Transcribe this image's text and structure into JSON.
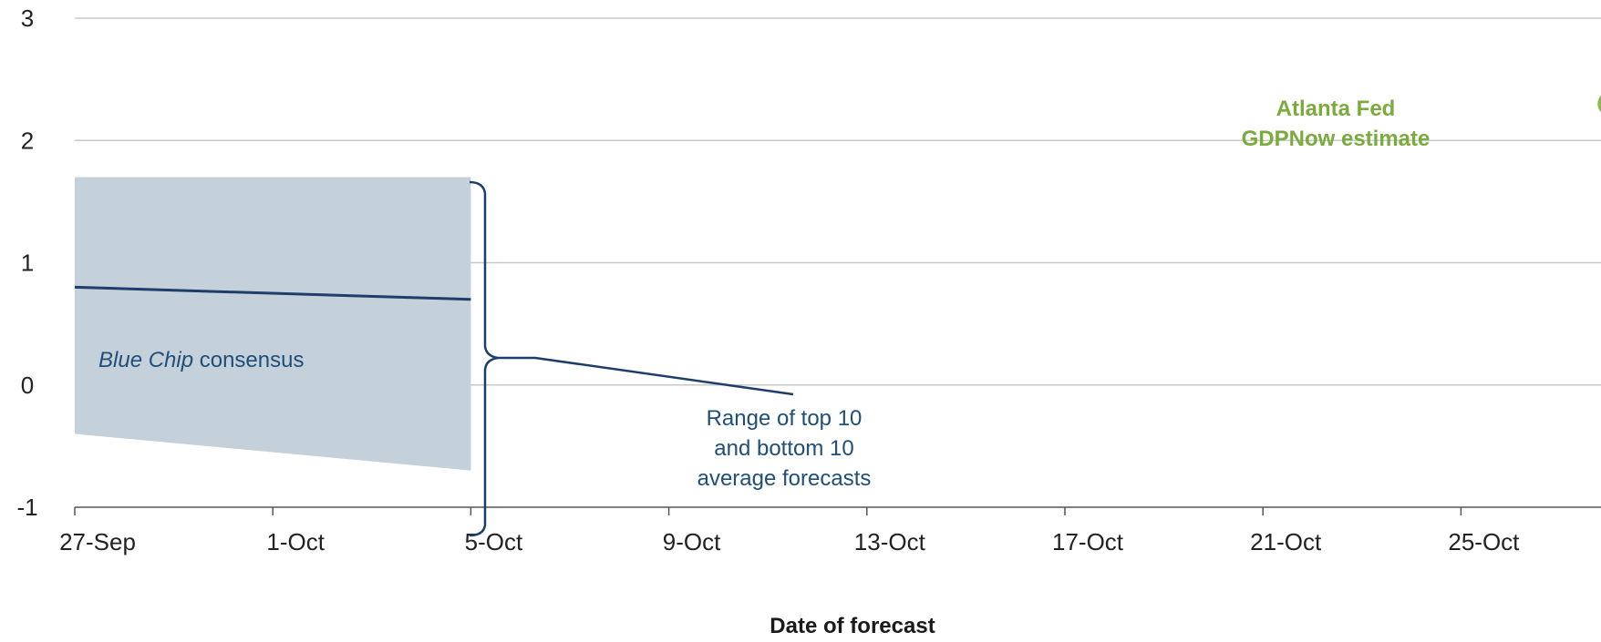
{
  "chart_data": {
    "type": "area",
    "title": "",
    "xlabel": "Date of forecast",
    "ylabel": "",
    "x_ticks": [
      "27-Sep",
      "1-Oct",
      "5-Oct",
      "9-Oct",
      "13-Oct",
      "17-Oct",
      "21-Oct",
      "25-Oct"
    ],
    "y_ticks": [
      "3",
      "2",
      "1",
      "0",
      "-1"
    ],
    "ylim": [
      -1,
      3
    ],
    "xlim": [
      "2016-09-27",
      "2016-10-30"
    ],
    "grid": true,
    "series": [
      {
        "name": "Blue Chip consensus",
        "type": "line",
        "color": "#1f3d6b",
        "x": [
          "2016-09-27",
          "2016-10-05"
        ],
        "y": [
          0.8,
          0.7
        ]
      },
      {
        "name": "Range of top 10 and bottom 10 average forecasts",
        "type": "band",
        "color": "#c5d1da",
        "x": [
          "2016-09-27",
          "2016-10-05"
        ],
        "upper": [
          1.7,
          1.7
        ],
        "lower": [
          -0.4,
          -0.7
        ]
      },
      {
        "name": "Atlanta Fed GDPNow estimate",
        "type": "point",
        "color": "#8bb84d",
        "x": [
          "2016-10-28"
        ],
        "y": [
          2.3
        ]
      }
    ],
    "annotations": {
      "consensus_italic": "Blue Chip",
      "consensus_rest": " consensus",
      "range_lines": [
        "Range of top 10",
        "and bottom 10",
        "average forecasts"
      ],
      "gdpnow_lines": [
        "Atlanta Fed",
        "GDPNow estimate"
      ]
    }
  }
}
